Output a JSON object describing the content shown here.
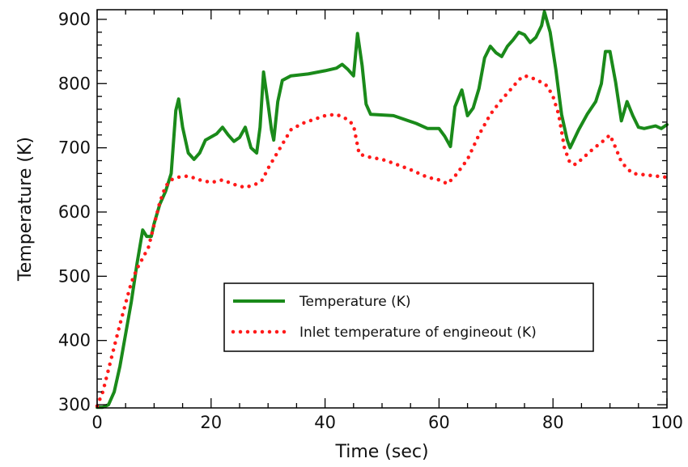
{
  "chart_data": {
    "type": "line",
    "title": "",
    "xlabel": "Time (sec)",
    "ylabel": "Temperature (K)",
    "xlim": [
      0,
      100
    ],
    "ylim": [
      295,
      915
    ],
    "x_ticks": [
      0,
      20,
      40,
      60,
      80,
      100
    ],
    "y_ticks": [
      300,
      400,
      500,
      600,
      700,
      800,
      900
    ],
    "grid": false,
    "legend_position": "bottom-center",
    "series": [
      {
        "name": "Temperature (K)",
        "color": "#1a8a1a",
        "style": "solid",
        "points": [
          [
            0,
            296
          ],
          [
            1,
            296
          ],
          [
            2,
            300
          ],
          [
            3,
            320
          ],
          [
            4,
            360
          ],
          [
            5,
            410
          ],
          [
            6,
            460
          ],
          [
            7,
            520
          ],
          [
            8,
            572
          ],
          [
            8.7,
            562
          ],
          [
            9.5,
            562
          ],
          [
            10,
            582
          ],
          [
            11,
            612
          ],
          [
            12,
            632
          ],
          [
            13,
            660
          ],
          [
            13.8,
            758
          ],
          [
            14.3,
            776
          ],
          [
            15,
            732
          ],
          [
            16,
            692
          ],
          [
            17,
            682
          ],
          [
            18,
            692
          ],
          [
            19,
            712
          ],
          [
            21,
            722
          ],
          [
            22,
            732
          ],
          [
            23,
            720
          ],
          [
            24,
            710
          ],
          [
            25,
            716
          ],
          [
            26,
            732
          ],
          [
            27,
            700
          ],
          [
            28,
            692
          ],
          [
            28.6,
            732
          ],
          [
            29.2,
            818
          ],
          [
            30,
            768
          ],
          [
            30.6,
            728
          ],
          [
            31,
            712
          ],
          [
            31.7,
            772
          ],
          [
            32.5,
            805
          ],
          [
            34,
            812
          ],
          [
            37,
            815
          ],
          [
            40,
            820
          ],
          [
            42,
            824
          ],
          [
            43,
            830
          ],
          [
            44,
            822
          ],
          [
            45,
            812
          ],
          [
            45.7,
            878
          ],
          [
            46.5,
            828
          ],
          [
            47.2,
            768
          ],
          [
            48,
            752
          ],
          [
            52,
            750
          ],
          [
            56,
            738
          ],
          [
            58,
            730
          ],
          [
            60,
            730
          ],
          [
            61,
            718
          ],
          [
            62,
            702
          ],
          [
            62.8,
            764
          ],
          [
            64,
            790
          ],
          [
            65,
            750
          ],
          [
            66,
            762
          ],
          [
            67,
            792
          ],
          [
            68,
            840
          ],
          [
            69,
            858
          ],
          [
            70,
            848
          ],
          [
            71,
            842
          ],
          [
            72,
            858
          ],
          [
            73,
            868
          ],
          [
            74,
            880
          ],
          [
            75,
            876
          ],
          [
            76,
            864
          ],
          [
            77,
            872
          ],
          [
            78,
            890
          ],
          [
            78.5,
            912
          ],
          [
            79.5,
            880
          ],
          [
            80.5,
            822
          ],
          [
            81.5,
            752
          ],
          [
            82.5,
            712
          ],
          [
            83,
            700
          ],
          [
            84.5,
            728
          ],
          [
            86,
            752
          ],
          [
            87.5,
            772
          ],
          [
            88.5,
            800
          ],
          [
            89.2,
            850
          ],
          [
            90,
            850
          ],
          [
            91,
            802
          ],
          [
            92,
            742
          ],
          [
            93,
            772
          ],
          [
            94,
            750
          ],
          [
            95,
            732
          ],
          [
            96,
            730
          ],
          [
            98,
            734
          ],
          [
            99,
            730
          ],
          [
            100,
            736
          ]
        ]
      },
      {
        "name": "Inlet temperature of engineout (K)",
        "color": "#ff1a1a",
        "style": "dotted",
        "points": [
          [
            0,
            298
          ],
          [
            1,
            320
          ],
          [
            2,
            355
          ],
          [
            3,
            390
          ],
          [
            4,
            425
          ],
          [
            5,
            458
          ],
          [
            6,
            490
          ],
          [
            7,
            512
          ],
          [
            8,
            528
          ],
          [
            9,
            545
          ],
          [
            10,
            580
          ],
          [
            11,
            615
          ],
          [
            12,
            640
          ],
          [
            13,
            650
          ],
          [
            14,
            654
          ],
          [
            16,
            656
          ],
          [
            18,
            650
          ],
          [
            20,
            646
          ],
          [
            22,
            650
          ],
          [
            24,
            643
          ],
          [
            26,
            638
          ],
          [
            28,
            644
          ],
          [
            29,
            650
          ],
          [
            30,
            668
          ],
          [
            32,
            698
          ],
          [
            34,
            728
          ],
          [
            36,
            738
          ],
          [
            38,
            744
          ],
          [
            40,
            750
          ],
          [
            42,
            752
          ],
          [
            44,
            744
          ],
          [
            45,
            735
          ],
          [
            46,
            690
          ],
          [
            48,
            685
          ],
          [
            50,
            682
          ],
          [
            52,
            676
          ],
          [
            55,
            666
          ],
          [
            58,
            654
          ],
          [
            60,
            650
          ],
          [
            61.5,
            644
          ],
          [
            63,
            658
          ],
          [
            65,
            682
          ],
          [
            67,
            720
          ],
          [
            69,
            752
          ],
          [
            71,
            775
          ],
          [
            73,
            795
          ],
          [
            74,
            806
          ],
          [
            75,
            812
          ],
          [
            76,
            810
          ],
          [
            78,
            802
          ],
          [
            79,
            796
          ],
          [
            80,
            780
          ],
          [
            81,
            752
          ],
          [
            82,
            700
          ],
          [
            83,
            676
          ],
          [
            84,
            674
          ],
          [
            85,
            682
          ],
          [
            87,
            698
          ],
          [
            89,
            712
          ],
          [
            90,
            720
          ],
          [
            91,
            700
          ],
          [
            92,
            678
          ],
          [
            93,
            668
          ],
          [
            94,
            660
          ],
          [
            96,
            658
          ],
          [
            98,
            656
          ],
          [
            100,
            654
          ]
        ]
      }
    ]
  }
}
